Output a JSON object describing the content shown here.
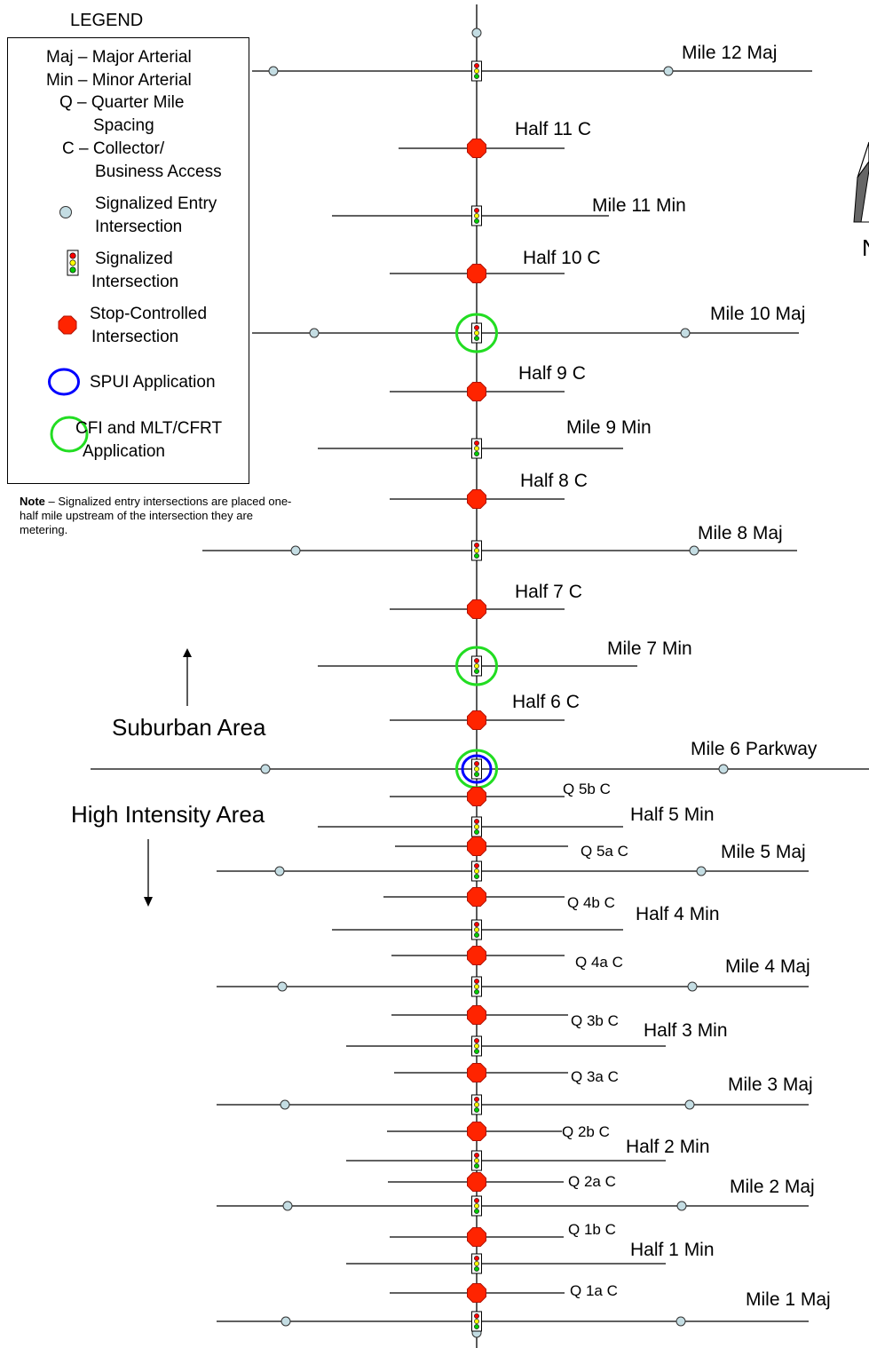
{
  "legend": {
    "title": "LEGEND",
    "abbreviations": [
      "Maj – Major Arterial",
      "Min – Minor Arterial",
      "Q – Quarter Mile",
      "Spacing",
      "C – Collector/",
      "Business Access"
    ],
    "symbols": [
      {
        "icon": "signalized-entry-circle",
        "lines": [
          "Signalized Entry",
          "Intersection"
        ]
      },
      {
        "icon": "traffic-signal",
        "lines": [
          "Signalized",
          "Intersection"
        ]
      },
      {
        "icon": "stop-octagon",
        "lines": [
          "Stop-Controlled",
          "Intersection"
        ]
      },
      {
        "icon": "spui-circle",
        "lines": [
          "SPUI Application"
        ]
      },
      {
        "icon": "cfi-circle",
        "lines": [
          "CFI and MLT/CFRT",
          "Application"
        ]
      }
    ]
  },
  "note": {
    "label": "Note",
    "text": " – Signalized entry intersections are placed one-half mile upstream of the intersection they are metering."
  },
  "areas": {
    "suburban": "Suburban Area",
    "high_intensity": "High Intensity Area"
  },
  "north_label": "N",
  "colors": {
    "entry_fill": "#c4dde3",
    "stop_fill": "#ff2400",
    "spui": "#0000ff",
    "cfi": "#22dd22",
    "signal_red": "#ff0000",
    "signal_yellow": "#ffff00",
    "signal_green": "#00cc00"
  },
  "intersections": [
    {
      "label": "Mile 12 Maj",
      "type": "signal"
    },
    {
      "label": "Half 11 C",
      "type": "stop"
    },
    {
      "label": "Mile 11 Min",
      "type": "signal"
    },
    {
      "label": "Half 10 C",
      "type": "stop"
    },
    {
      "label": "Mile 10 Maj",
      "type": "signal",
      "cfi": true
    },
    {
      "label": "Half 9 C",
      "type": "stop"
    },
    {
      "label": "Mile 9 Min",
      "type": "signal"
    },
    {
      "label": "Half 8 C",
      "type": "stop"
    },
    {
      "label": "Mile 8 Maj",
      "type": "signal"
    },
    {
      "label": "Half 7 C",
      "type": "stop"
    },
    {
      "label": "Mile 7 Min",
      "type": "signal",
      "cfi": true
    },
    {
      "label": "Half 6 C",
      "type": "stop"
    },
    {
      "label": "Mile 6 Parkway",
      "type": "signal",
      "cfi": true,
      "spui": true
    },
    {
      "label": "Q 5b C",
      "type": "stop"
    },
    {
      "label": "Half 5 Min",
      "type": "signal"
    },
    {
      "label": "Q 5a C",
      "type": "stop"
    },
    {
      "label": "Mile 5 Maj",
      "type": "signal"
    },
    {
      "label": "Q 4b C",
      "type": "stop"
    },
    {
      "label": "Half 4 Min",
      "type": "signal"
    },
    {
      "label": "Q 4a C",
      "type": "stop"
    },
    {
      "label": "Mile 4 Maj",
      "type": "signal"
    },
    {
      "label": "Q 3b C",
      "type": "stop"
    },
    {
      "label": "Half 3 Min",
      "type": "signal"
    },
    {
      "label": "Q 3a C",
      "type": "stop"
    },
    {
      "label": "Mile 3 Maj",
      "type": "signal"
    },
    {
      "label": "Q 2b C",
      "type": "stop"
    },
    {
      "label": "Half 2 Min",
      "type": "signal"
    },
    {
      "label": "Q 2a C",
      "type": "stop"
    },
    {
      "label": "Mile 2 Maj",
      "type": "signal"
    },
    {
      "label": "Q 1b C",
      "type": "stop"
    },
    {
      "label": "Half 1 Min",
      "type": "signal"
    },
    {
      "label": "Q 1a C",
      "type": "stop"
    },
    {
      "label": "Mile 1 Maj",
      "type": "signal"
    }
  ]
}
